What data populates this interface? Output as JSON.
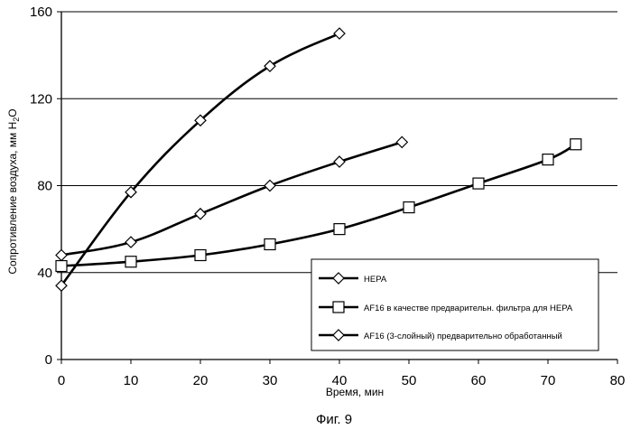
{
  "figure_caption": "Фиг. 9",
  "chart_data": {
    "type": "line",
    "xlabel": "Время, мин",
    "ylabel": {
      "text": "Сопротивление воздуха, мм H",
      "sub": "2",
      "tail": "O"
    },
    "xlim": [
      0,
      80
    ],
    "ylim": [
      0,
      160
    ],
    "x_ticks": [
      0,
      10,
      20,
      30,
      40,
      50,
      60,
      70,
      80
    ],
    "y_ticks": [
      0,
      40,
      80,
      120,
      160
    ],
    "grid": "horizontal",
    "legend_position": "lower-right",
    "series": [
      {
        "name": "HEPA",
        "marker": "diamond",
        "x": [
          0,
          10,
          20,
          30,
          40
        ],
        "y": [
          34,
          77,
          110,
          135,
          150
        ]
      },
      {
        "name": "AF16 в качестве предварительн. фильтра для HEPA",
        "marker": "square",
        "x": [
          0,
          10,
          20,
          30,
          40,
          50,
          60,
          70,
          74
        ],
        "y": [
          43,
          45,
          48,
          53,
          60,
          70,
          81,
          92,
          99
        ]
      },
      {
        "name": "AF16 (3-слойный) предварительно обработанный",
        "marker": "diamond",
        "x": [
          0,
          10,
          20,
          30,
          40,
          49
        ],
        "y": [
          48,
          54,
          67,
          80,
          91,
          100
        ]
      }
    ]
  }
}
